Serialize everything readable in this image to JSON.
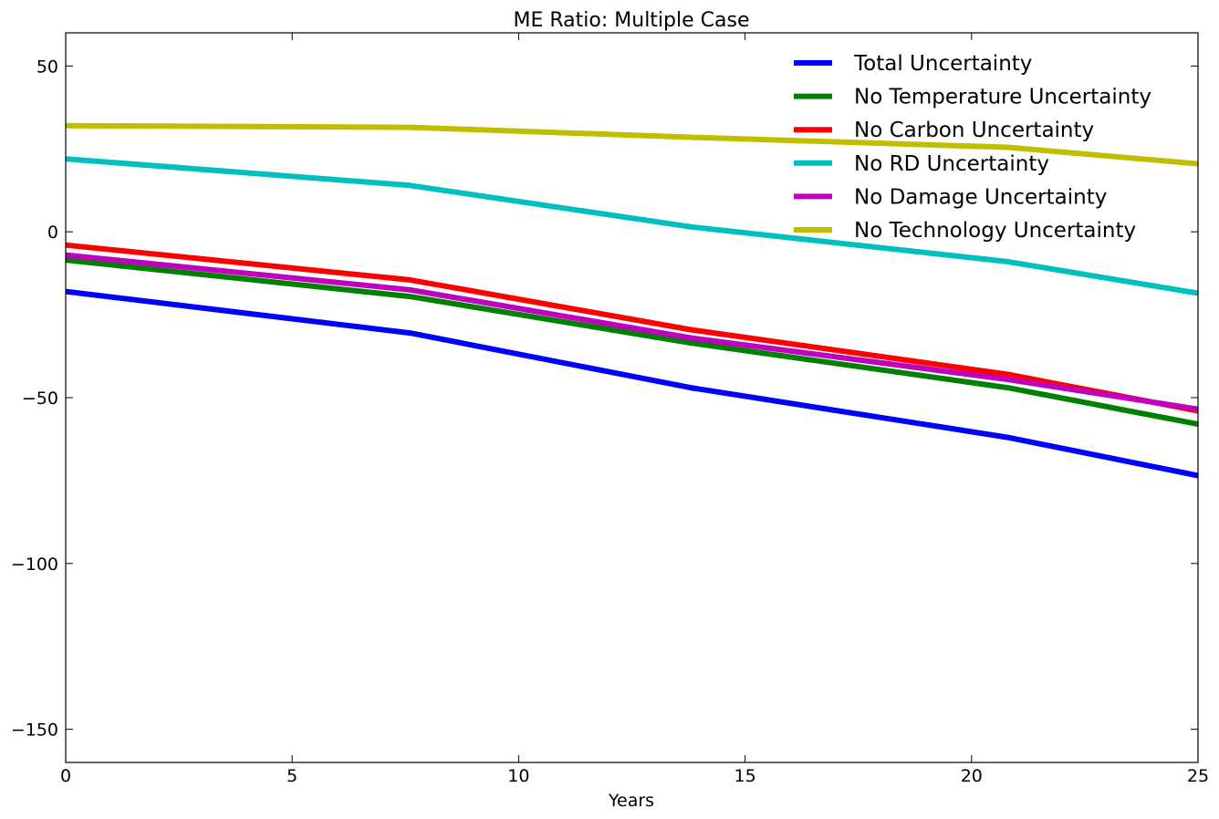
{
  "chart_data": {
    "type": "line",
    "title": "ME Ratio: Multiple Case",
    "xlabel": "Years",
    "ylabel": "",
    "xlim": [
      0,
      25
    ],
    "ylim": [
      -160,
      60
    ],
    "xticks": [
      0,
      5,
      10,
      15,
      20,
      25
    ],
    "xtick_labels": [
      "0",
      "5",
      "10",
      "15",
      "20",
      "25"
    ],
    "yticks": [
      50,
      0,
      -50,
      -100,
      -150
    ],
    "ytick_labels": [
      "50",
      "0",
      "−50",
      "−100",
      "−150"
    ],
    "grid": false,
    "legend_position": "top-right",
    "x": [
      0,
      7.6,
      13.8,
      20.8,
      25
    ],
    "series": [
      {
        "name": "Total Uncertainty",
        "color": "#0000ff",
        "values": [
          -18,
          -30.5,
          -47,
          -62,
          -73.5
        ]
      },
      {
        "name": "No Temperature Uncertainty",
        "color": "#008000",
        "values": [
          -8.5,
          -19.5,
          -33.5,
          -47,
          -58
        ]
      },
      {
        "name": "No Carbon Uncertainty",
        "color": "#ff0000",
        "values": [
          -4,
          -14.5,
          -29.5,
          -43,
          -54
        ]
      },
      {
        "name": "No RD Uncertainty",
        "color": "#00bfbf",
        "values": [
          22,
          14,
          1.5,
          -9,
          -18.5
        ]
      },
      {
        "name": "No Damage Uncertainty",
        "color": "#bf00bf",
        "values": [
          -7,
          -17.5,
          -32,
          -44.5,
          -53.5
        ]
      },
      {
        "name": "No Technology Uncertainty",
        "color": "#bfbf00",
        "values": [
          32,
          31.5,
          28.5,
          25.5,
          20.5
        ]
      }
    ]
  }
}
